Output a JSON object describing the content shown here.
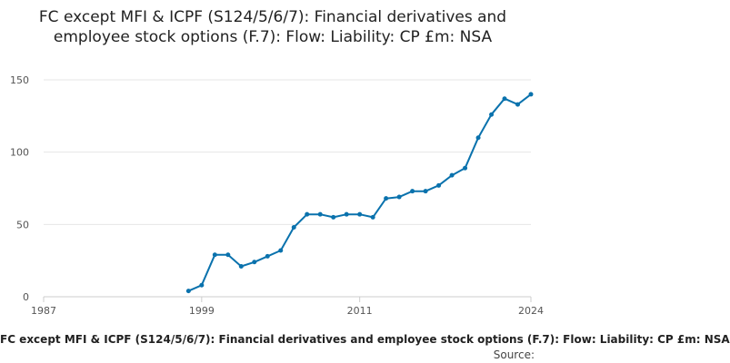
{
  "chart_data": {
    "type": "line",
    "title": "FC except MFI & ICPF (S124/5/6/7): Financial derivatives and employee stock options (F.7): Flow: Liability: CP £m: NSA",
    "xlabel": "",
    "ylabel": "",
    "caption": "FC except MFI & ICPF (S124/5/6/7): Financial derivatives and employee stock options (F.7): Flow: Liability: CP £m: NSA",
    "source": "Source:",
    "x_ticks": [
      "1987",
      "1999",
      "2011",
      "2024"
    ],
    "y_ticks": [
      0,
      50,
      100,
      150
    ],
    "xlim": [
      1987,
      2024
    ],
    "ylim": [
      0,
      150
    ],
    "grid": true,
    "legend": "none",
    "colors": {
      "line": "#0a72ad",
      "grid": "#e6e6e6"
    },
    "series": [
      {
        "x": [
          1998,
          1999,
          2000,
          2001,
          2002,
          2003,
          2004,
          2005,
          2006,
          2007,
          2008,
          2009,
          2010,
          2011,
          2012,
          2013,
          2014,
          2015,
          2016,
          2017,
          2018,
          2019,
          2020,
          2021,
          2022,
          2023,
          2024
        ],
        "values": [
          4,
          8,
          29,
          29,
          21,
          24,
          28,
          32,
          48,
          57,
          57,
          55,
          57,
          57,
          55,
          68,
          69,
          73,
          73,
          77,
          84,
          89,
          110,
          126,
          137,
          133,
          140
        ]
      }
    ]
  }
}
